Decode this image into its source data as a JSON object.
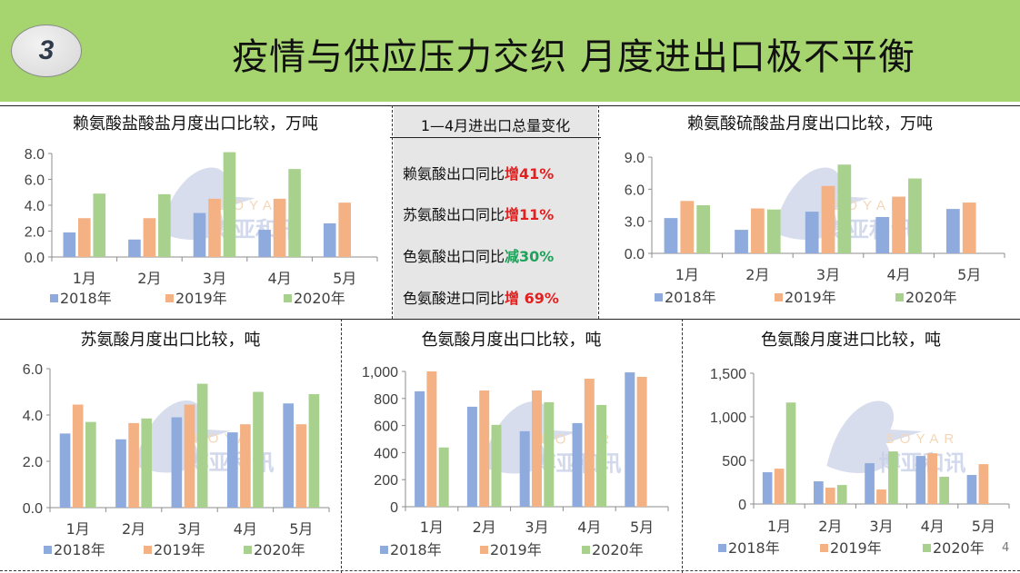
{
  "header": {
    "section_number": "3",
    "title": "疫情与供应压力交织 月度进出口极不平衡"
  },
  "summary": {
    "heading": "1—4月进出口总量变化",
    "items": [
      {
        "label": "赖氨酸出口同比",
        "change": "增41%",
        "color": "#e32020"
      },
      {
        "label": "苏氨酸出口同比",
        "change": "增11%",
        "color": "#e32020"
      },
      {
        "label": "色氨酸出口同比",
        "change": "减30%",
        "color": "#1fa35a"
      },
      {
        "label": "色氨酸进口同比",
        "change": "增 69%",
        "color": "#e32020"
      }
    ]
  },
  "watermark": {
    "logo_text": "BOYAR",
    "logo_cn": "博亚和讯"
  },
  "page_number": "4",
  "colors": {
    "header_bg": "#a6d46e",
    "2018年": "#8faadc",
    "2019年": "#f4b183",
    "2020年": "#a9d18e"
  },
  "chart_data": [
    {
      "type": "bar",
      "title": "赖氨酸盐酸盐月度出口比较，万吨",
      "categories": [
        "1月",
        "2月",
        "3月",
        "4月",
        "5月"
      ],
      "yticks": [
        "0.0",
        "2.0",
        "4.0",
        "6.0",
        "8.0"
      ],
      "ylim": [
        0,
        8
      ],
      "legend": "bottom",
      "series": [
        {
          "name": "2018年",
          "values": [
            1.9,
            1.35,
            3.4,
            2.1,
            2.6
          ]
        },
        {
          "name": "2019年",
          "values": [
            3.0,
            3.0,
            4.5,
            4.5,
            4.2
          ]
        },
        {
          "name": "2020年",
          "values": [
            4.9,
            4.85,
            8.1,
            6.8,
            null
          ]
        }
      ]
    },
    {
      "type": "bar",
      "title": "赖氨酸硫酸盐月度出口比较，万吨",
      "categories": [
        "1月",
        "2月",
        "3月",
        "4月",
        "5月"
      ],
      "yticks": [
        "0.0",
        "3.0",
        "6.0",
        "9.0"
      ],
      "ylim": [
        0,
        9
      ],
      "legend": "bottom",
      "series": [
        {
          "name": "2018年",
          "values": [
            3.3,
            2.2,
            3.9,
            3.4,
            4.15
          ]
        },
        {
          "name": "2019年",
          "values": [
            4.9,
            4.2,
            6.3,
            5.3,
            4.75
          ]
        },
        {
          "name": "2020年",
          "values": [
            4.5,
            4.1,
            8.3,
            7.0,
            null
          ]
        }
      ]
    },
    {
      "type": "bar",
      "title": "苏氨酸月度出口比较，吨",
      "categories": [
        "1月",
        "2月",
        "3月",
        "4月",
        "5月"
      ],
      "yticks": [
        "0.0",
        "2.0",
        "4.0",
        "6.0"
      ],
      "ylim": [
        0,
        6
      ],
      "legend": "bottom",
      "series": [
        {
          "name": "2018年",
          "values": [
            3.2,
            2.95,
            3.9,
            3.25,
            4.5
          ]
        },
        {
          "name": "2019年",
          "values": [
            4.45,
            3.65,
            4.45,
            3.6,
            3.6
          ]
        },
        {
          "name": "2020年",
          "values": [
            3.7,
            3.85,
            5.35,
            5.0,
            4.9
          ]
        }
      ]
    },
    {
      "type": "bar",
      "title": "色氨酸月度出口比较，吨",
      "categories": [
        "1月",
        "2月",
        "3月",
        "4月",
        "5月"
      ],
      "yticks": [
        "0",
        "200",
        "400",
        "600",
        "800",
        "1,000"
      ],
      "ylim": [
        0,
        1000
      ],
      "legend": "bottom",
      "series": [
        {
          "name": "2018年",
          "values": [
            853,
            739,
            558,
            618,
            993
          ]
        },
        {
          "name": "2019年",
          "values": [
            1000,
            859,
            859,
            946,
            960
          ]
        },
        {
          "name": "2020年",
          "values": [
            438,
            605,
            772,
            752,
            null
          ]
        }
      ]
    },
    {
      "type": "bar",
      "title": "色氨酸月度进口比较，吨",
      "categories": [
        "1月",
        "2月",
        "3月",
        "4月",
        "5月"
      ],
      "yticks": [
        "0",
        "500",
        "1,000",
        "1,500"
      ],
      "ylim": [
        0,
        1500
      ],
      "legend": "bottom",
      "series": [
        {
          "name": "2018年",
          "values": [
            364,
            260,
            468,
            551,
            333
          ]
        },
        {
          "name": "2019年",
          "values": [
            405,
            187,
            166,
            582,
            457
          ]
        },
        {
          "name": "2020年",
          "values": [
            1164,
            218,
            603,
            312,
            null
          ]
        }
      ]
    }
  ]
}
